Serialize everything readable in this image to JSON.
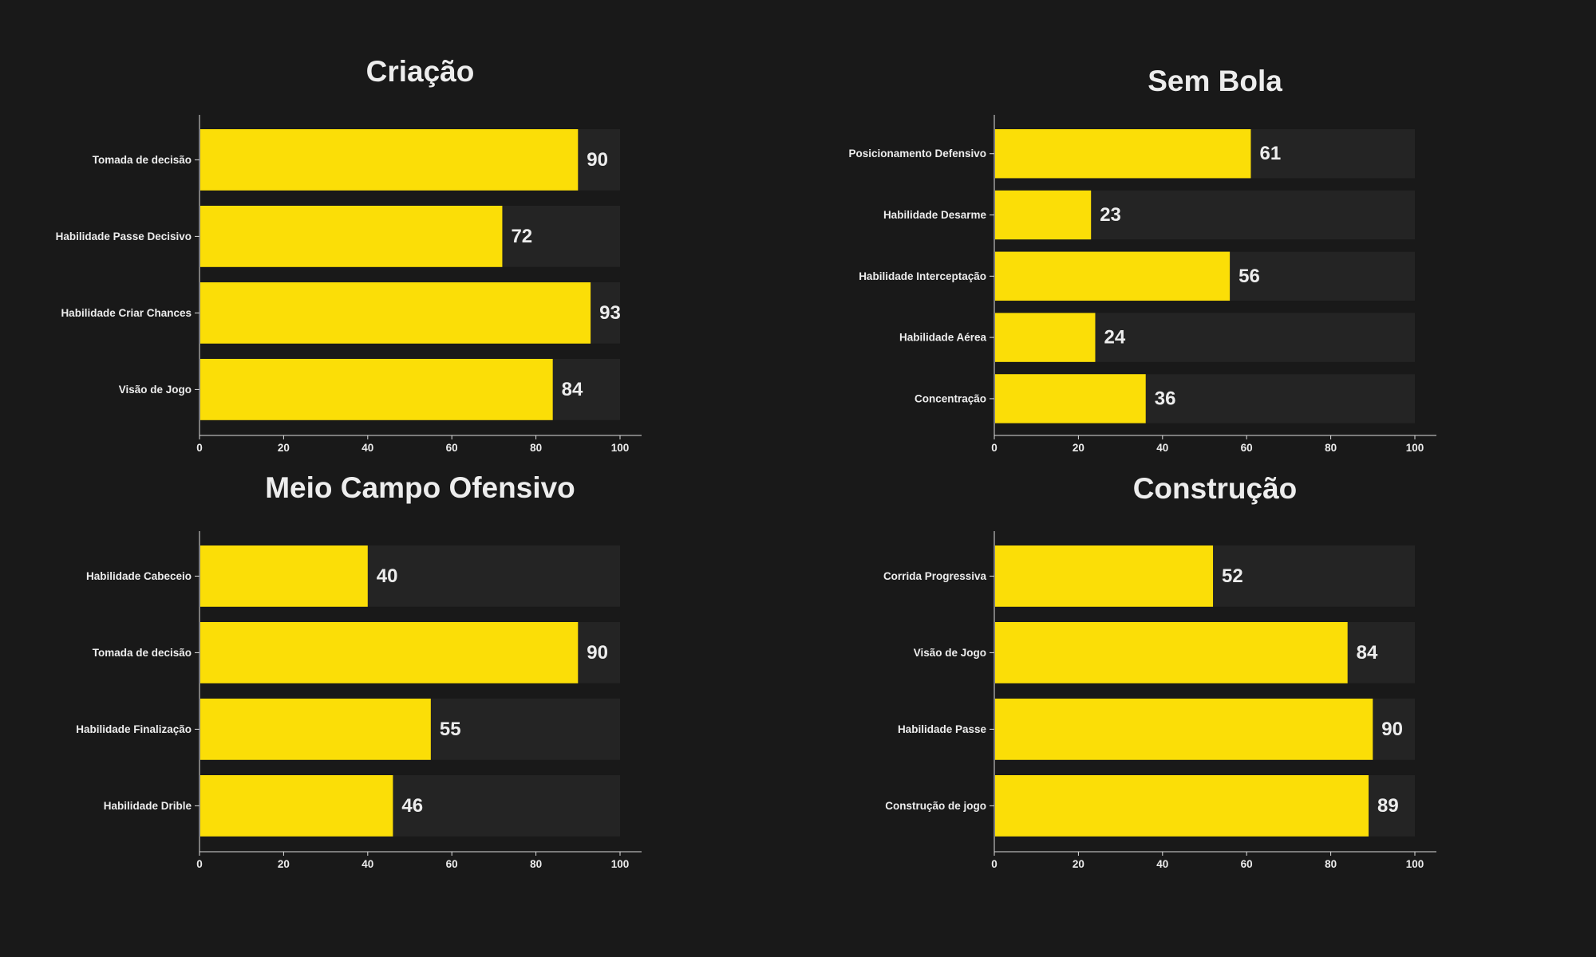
{
  "figure": {
    "background": "#191919"
  },
  "style": {
    "bar_color": "#FBDE07",
    "track_color": "#242424",
    "text_color": "#EDEDED",
    "axis_color": "#DDDDDD"
  },
  "chart_data": [
    {
      "type": "bar",
      "orientation": "horizontal",
      "title": "Criação",
      "categories": [
        "Tomada de decisão",
        "Habilidade Passe Decisivo",
        "Habilidade Criar Chances",
        "Visão de Jogo"
      ],
      "values": [
        90,
        72,
        93,
        84
      ],
      "xlim": [
        0,
        100
      ],
      "xticks": [
        0,
        20,
        40,
        60,
        80,
        100
      ],
      "grid": false,
      "legend": false
    },
    {
      "type": "bar",
      "orientation": "horizontal",
      "title": "Sem Bola",
      "categories": [
        "Posicionamento Defensivo",
        "Habilidade Desarme",
        "Habilidade Interceptação",
        "Habilidade Aérea",
        "Concentração"
      ],
      "values": [
        61,
        23,
        56,
        24,
        36
      ],
      "xlim": [
        0,
        100
      ],
      "xticks": [
        0,
        20,
        40,
        60,
        80,
        100
      ],
      "grid": false,
      "legend": false
    },
    {
      "type": "bar",
      "orientation": "horizontal",
      "title": "Meio Campo Ofensivo",
      "categories": [
        "Habilidade Cabeceio",
        "Tomada de decisão",
        "Habilidade Finalização",
        "Habilidade Drible"
      ],
      "values": [
        40,
        90,
        55,
        46
      ],
      "xlim": [
        0,
        100
      ],
      "xticks": [
        0,
        20,
        40,
        60,
        80,
        100
      ],
      "grid": false,
      "legend": false
    },
    {
      "type": "bar",
      "orientation": "horizontal",
      "title": "Construção",
      "categories": [
        "Corrida Progressiva",
        "Visão de Jogo",
        "Habilidade Passe",
        "Construção de jogo"
      ],
      "values": [
        52,
        84,
        90,
        89
      ],
      "xlim": [
        0,
        100
      ],
      "xticks": [
        0,
        20,
        40,
        60,
        80,
        100
      ],
      "grid": false,
      "legend": false
    }
  ]
}
